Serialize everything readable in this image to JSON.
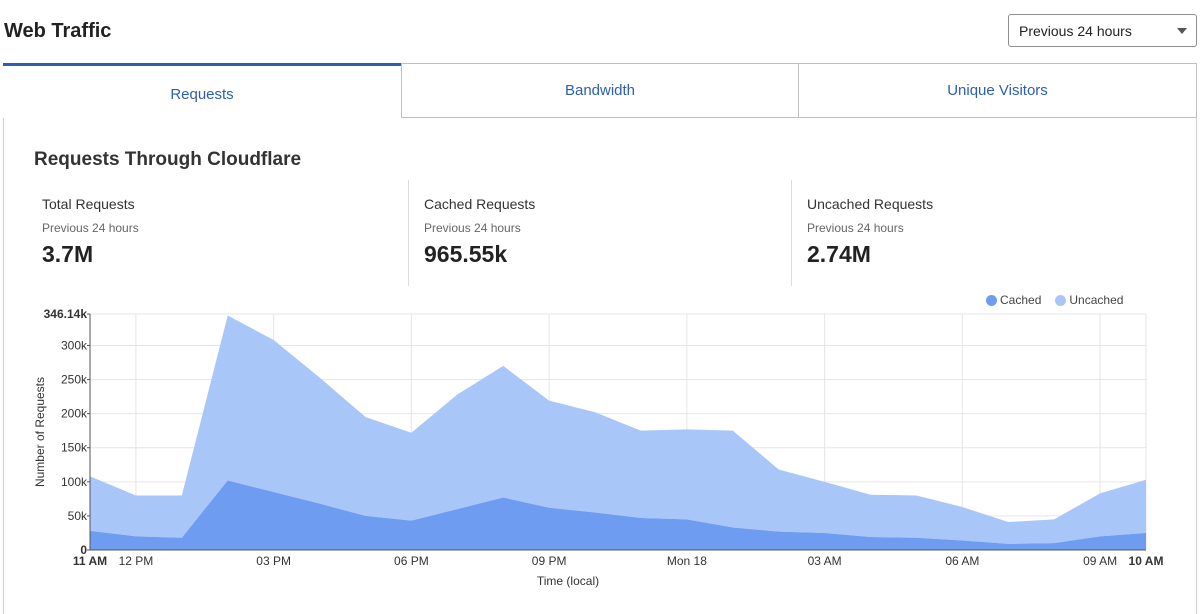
{
  "header": {
    "title": "Web Traffic",
    "range_select": "Previous 24 hours"
  },
  "tabs": [
    {
      "label": "Requests",
      "active": true
    },
    {
      "label": "Bandwidth",
      "active": false
    },
    {
      "label": "Unique Visitors",
      "active": false
    }
  ],
  "section": {
    "title": "Requests Through Cloudflare"
  },
  "stats": [
    {
      "label": "Total Requests",
      "period": "Previous 24 hours",
      "value": "3.7M"
    },
    {
      "label": "Cached Requests",
      "period": "Previous 24 hours",
      "value": "965.55k"
    },
    {
      "label": "Uncached Requests",
      "period": "Previous 24 hours",
      "value": "2.74M"
    }
  ],
  "colors": {
    "cached": "#6e9cf0",
    "uncached": "#a9c6f8",
    "accent": "#2c5fb0"
  },
  "chart_data": {
    "type": "area",
    "stacked": true,
    "xlabel": "Time (local)",
    "ylabel": "Number of Requests",
    "ylim": [
      0,
      346140
    ],
    "y_max_label": "346.14k",
    "y_ticks": [
      {
        "value": 0,
        "label": "0"
      },
      {
        "value": 50000,
        "label": "50k"
      },
      {
        "value": 100000,
        "label": "100k"
      },
      {
        "value": 150000,
        "label": "150k"
      },
      {
        "value": 200000,
        "label": "200k"
      },
      {
        "value": 250000,
        "label": "250k"
      },
      {
        "value": 300000,
        "label": "300k"
      },
      {
        "value": 346140,
        "label": "346.14k"
      }
    ],
    "x_domain": [
      0,
      23
    ],
    "x_ticks": [
      {
        "value": 0,
        "label": "11 AM",
        "bold": true
      },
      {
        "value": 1,
        "label": "12 PM",
        "bold": false
      },
      {
        "value": 4,
        "label": "03 PM",
        "bold": false
      },
      {
        "value": 7,
        "label": "06 PM",
        "bold": false
      },
      {
        "value": 10,
        "label": "09 PM",
        "bold": false
      },
      {
        "value": 13,
        "label": "Mon 18",
        "bold": false
      },
      {
        "value": 16,
        "label": "03 AM",
        "bold": false
      },
      {
        "value": 19,
        "label": "06 AM",
        "bold": false
      },
      {
        "value": 22,
        "label": "09 AM",
        "bold": false
      },
      {
        "value": 23,
        "label": "10 AM",
        "bold": true
      }
    ],
    "legend": [
      "Cached",
      "Uncached"
    ],
    "legend_position": "top-right",
    "grid": true,
    "series": [
      {
        "name": "Cached",
        "values": [
          28000,
          20000,
          18000,
          102000,
          85000,
          68000,
          50000,
          43000,
          60000,
          77000,
          62000,
          55000,
          47000,
          45000,
          33000,
          27000,
          25000,
          19000,
          18000,
          14000,
          9000,
          10000,
          20000,
          25000
        ]
      },
      {
        "name": "Uncached",
        "values": [
          80000,
          60000,
          62000,
          242000,
          223000,
          185000,
          145000,
          129000,
          168000,
          193000,
          157000,
          147000,
          128000,
          132000,
          142000,
          91000,
          75000,
          62000,
          62000,
          49000,
          32000,
          35000,
          63000,
          78000
        ]
      }
    ]
  }
}
